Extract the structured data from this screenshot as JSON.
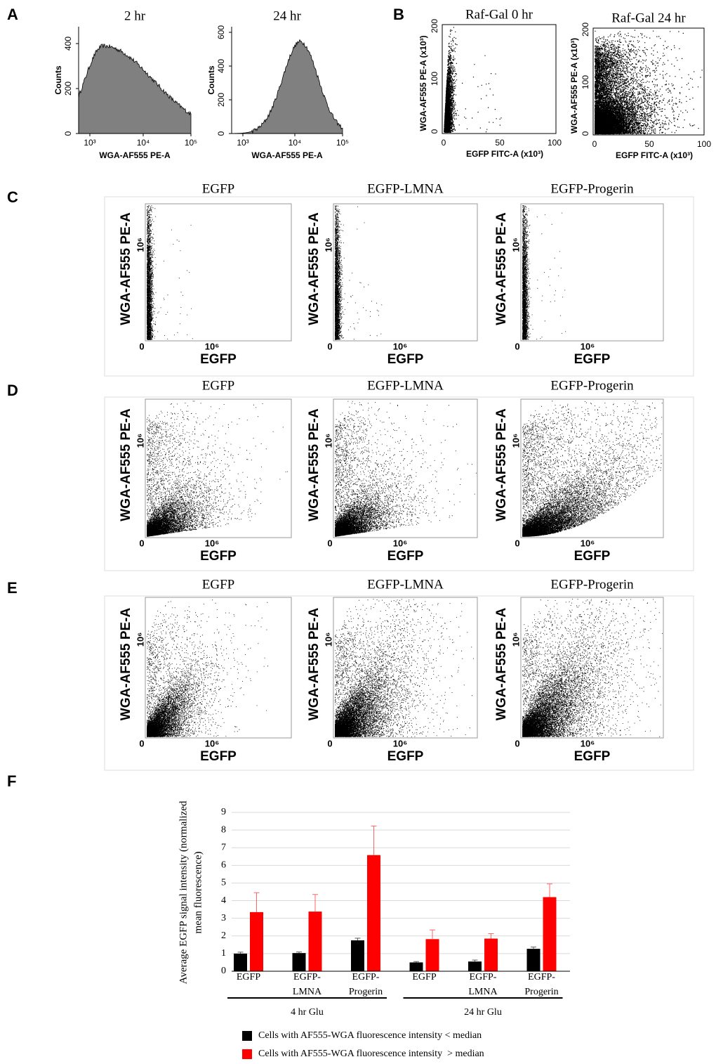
{
  "panels": [
    {
      "label": "A",
      "plots": [
        {
          "title": "2 hr",
          "y_label": "Counts",
          "x_label": "WGA-AF555 PE-A",
          "y_ticks": [
            "0",
            "200",
            "400"
          ],
          "x_ticks": [
            "10³",
            "10⁴",
            "10⁵"
          ]
        },
        {
          "title": "24 hr",
          "y_label": "Counts",
          "x_label": "WGA-AF555 PE-A",
          "y_ticks": [
            "0",
            "200",
            "400",
            "600"
          ],
          "x_ticks": [
            "10³",
            "10⁴",
            "10⁵"
          ]
        }
      ]
    },
    {
      "label": "B",
      "plots": [
        {
          "title": "Raf-Gal 0 hr",
          "y_label": "WGA-AF555 PE-A (x10³)",
          "x_label": "EGFP FITC-A (x10³)",
          "y_ticks": [
            "0",
            "100",
            "200"
          ],
          "x_ticks": [
            "0",
            "50",
            "100"
          ]
        },
        {
          "title": "Raf-Gal 24 hr",
          "y_label": "WGA-AF555 PE-A (x10³)",
          "x_label": "EGFP FITC-A (x10³)",
          "y_ticks": [
            "0",
            "100",
            "200"
          ],
          "x_ticks": [
            "0",
            "50",
            "100"
          ]
        }
      ]
    },
    {
      "label": "C",
      "plots": [
        {
          "title": "EGFP",
          "y_label": "WGA-AF555 PE-A",
          "x_label": "EGFP",
          "origin": "0",
          "y_tick": "10⁶",
          "x_tick": "10⁶"
        },
        {
          "title": "EGFP-LMNA",
          "y_label": "WGA-AF555 PE-A",
          "x_label": "EGFP",
          "origin": "0",
          "y_tick": "10⁶",
          "x_tick": "10⁶"
        },
        {
          "title": "EGFP-Progerin",
          "y_label": "WGA-AF555 PE-A",
          "x_label": "EGFP",
          "origin": "0",
          "y_tick": "10⁶",
          "x_tick": "10⁶"
        }
      ]
    },
    {
      "label": "D",
      "plots": [
        {
          "title": "EGFP",
          "y_label": "WGA-AF555 PE-A",
          "x_label": "EGFP",
          "origin": "0",
          "y_tick": "10⁶",
          "x_tick": "10⁶"
        },
        {
          "title": "EGFP-LMNA",
          "y_label": "WGA-AF555 PE-A",
          "x_label": "EGFP",
          "origin": "0",
          "y_tick": "10⁶",
          "x_tick": "10⁶"
        },
        {
          "title": "EGFP-Progerin",
          "y_label": "WGA-AF555 PE-A",
          "x_label": "EGFP",
          "origin": "0",
          "y_tick": "10⁶",
          "x_tick": "10⁶"
        }
      ]
    },
    {
      "label": "E",
      "plots": [
        {
          "title": "EGFP",
          "y_label": "WGA-AF555 PE-A",
          "x_label": "EGFP",
          "origin": "0",
          "y_tick": "10⁶",
          "x_tick": "10⁶"
        },
        {
          "title": "EGFP-LMNA",
          "y_label": "WGA-AF555 PE-A",
          "x_label": "EGFP",
          "origin": "0",
          "y_tick": "10⁶",
          "x_tick": "10⁶"
        },
        {
          "title": "EGFP-Progerin",
          "y_label": "WGA-AF555 PE-A",
          "x_label": "EGFP",
          "origin": "0",
          "y_tick": "10⁶",
          "x_tick": "10⁶"
        }
      ]
    },
    {
      "label": "F"
    }
  ],
  "chart_data": {
    "type": "bar",
    "y_label": [
      "Average EGFP signal intensity (normalized",
      "mean fluorescence)"
    ],
    "categories": [
      [
        "EGFP"
      ],
      [
        "EGFP-",
        "LMNA"
      ],
      [
        "EGFP-",
        "Progerin"
      ],
      [
        "EGFP"
      ],
      [
        "EGFP-",
        "LMNA"
      ],
      [
        "EGFP-",
        "Progerin"
      ]
    ],
    "groups": [
      "4 hr Glu",
      "24 hr Glu"
    ],
    "series": [
      {
        "name": "Cells with AF555-WGA fluorescence intensity < median",
        "color": "#000000",
        "values": [
          1.0,
          1.03,
          1.75,
          0.5,
          0.55,
          1.27
        ],
        "errors": [
          0.08,
          0.06,
          0.12,
          0.05,
          0.08,
          0.1
        ]
      },
      {
        "name": "Cells with AF555-WGA fluorescence intensity  > median",
        "color": "#ff0000",
        "values": [
          3.35,
          3.38,
          6.58,
          1.82,
          1.85,
          4.2
        ],
        "errors": [
          1.1,
          0.97,
          1.65,
          0.52,
          0.28,
          0.75
        ]
      }
    ],
    "ylim": [
      0,
      9
    ],
    "yticks": [
      0,
      1,
      2,
      3,
      4,
      5,
      6,
      7,
      8,
      9
    ],
    "grid": true
  }
}
